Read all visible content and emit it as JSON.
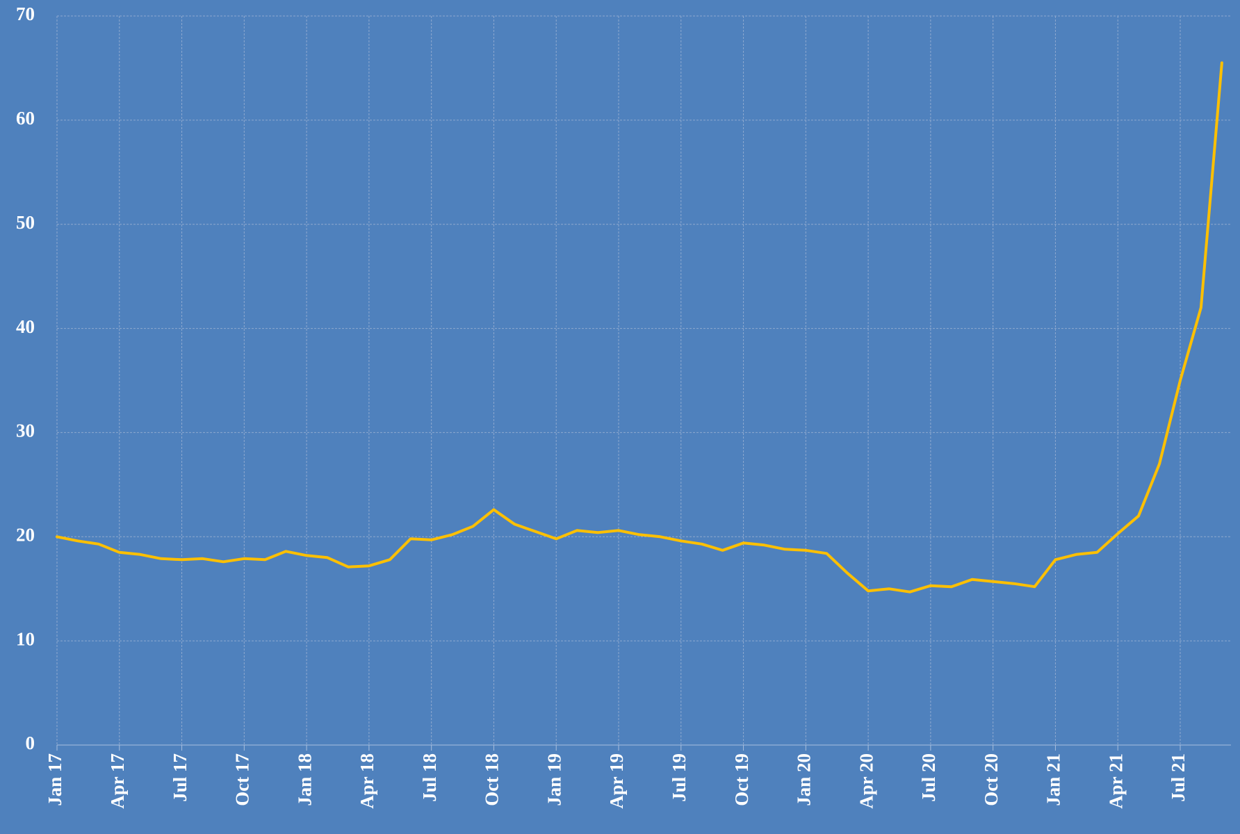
{
  "chart_data": {
    "type": "line",
    "categories": [
      "Jan 17",
      null,
      null,
      "Apr 17",
      null,
      null,
      "Jul 17",
      null,
      null,
      "Oct 17",
      null,
      null,
      "Jan 18",
      null,
      null,
      "Apr 18",
      null,
      null,
      "Jul 18",
      null,
      null,
      "Oct 18",
      null,
      null,
      "Jan 19",
      null,
      null,
      "Apr 19",
      null,
      null,
      "Jul 19",
      null,
      null,
      "Oct 19",
      null,
      null,
      "Jan 20",
      null,
      null,
      "Apr 20",
      null,
      null,
      "Jul 20",
      null,
      null,
      "Oct 20",
      null,
      null,
      "Jan 21",
      null,
      null,
      "Apr 21",
      null,
      null,
      "Jul 21",
      null,
      null
    ],
    "values": [
      20,
      19.6,
      19.3,
      18.5,
      18.3,
      17.9,
      17.8,
      17.9,
      17.6,
      17.9,
      17.8,
      18.6,
      18.2,
      18,
      17.1,
      17.2,
      17.8,
      19.8,
      19.7,
      20.2,
      21,
      22.6,
      21.2,
      20.5,
      19.8,
      20.6,
      20.4,
      20.6,
      20.2,
      20,
      19.6,
      19.3,
      18.7,
      19.4,
      19.2,
      18.8,
      18.7,
      18.4,
      16.5,
      14.8,
      15,
      14.7,
      15.3,
      15.2,
      15.9,
      15.7,
      15.5,
      15.2,
      17.8,
      18.3,
      18.5,
      20.3,
      22,
      27,
      35,
      42,
      65.5
    ],
    "color": "#ffc000",
    "ylim": [
      0,
      70
    ],
    "yticks": [
      0,
      10,
      20,
      30,
      40,
      50,
      60,
      70
    ],
    "grid": true
  }
}
